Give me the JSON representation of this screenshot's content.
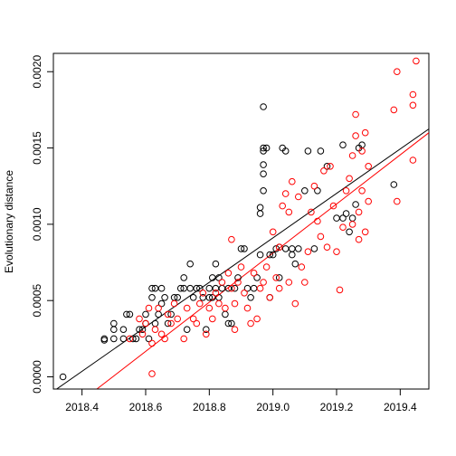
{
  "chart_data": {
    "type": "scatter",
    "title": "",
    "xlabel": "",
    "ylabel": "Evolutionary distance",
    "xlim": [
      2018.31,
      2019.49
    ],
    "ylim": [
      -8e-05,
      0.00212
    ],
    "xticks": [
      2018.4,
      2018.6,
      2018.8,
      2019.0,
      2019.2,
      2019.4
    ],
    "xtick_labels": [
      "2018.4",
      "2018.6",
      "2018.8",
      "2019.0",
      "2019.2",
      "2019.4"
    ],
    "yticks": [
      0.0,
      0.0005,
      0.001,
      0.0015,
      0.002
    ],
    "ytick_labels": [
      "0.0000",
      "0.0005",
      "0.0010",
      "0.0015",
      "0.0020"
    ],
    "grid": false,
    "legend": "none",
    "series": [
      {
        "color": "#000000",
        "marker": "open-circle",
        "points": [
          [
            2018.34,
            0.0
          ],
          [
            2018.47,
            0.00025
          ],
          [
            2018.47,
            0.00024
          ],
          [
            2018.5,
            0.00025
          ],
          [
            2018.5,
            0.00031
          ],
          [
            2018.5,
            0.00035
          ],
          [
            2018.53,
            0.00025
          ],
          [
            2018.53,
            0.00031
          ],
          [
            2018.54,
            0.00041
          ],
          [
            2018.55,
            0.00041
          ],
          [
            2018.56,
            0.00025
          ],
          [
            2018.57,
            0.00025
          ],
          [
            2018.58,
            0.00031
          ],
          [
            2018.59,
            0.00031
          ],
          [
            2018.6,
            0.00035
          ],
          [
            2018.6,
            0.00041
          ],
          [
            2018.61,
            0.00025
          ],
          [
            2018.62,
            0.00052
          ],
          [
            2018.62,
            0.00058
          ],
          [
            2018.63,
            0.00058
          ],
          [
            2018.63,
            0.00035
          ],
          [
            2018.64,
            0.00041
          ],
          [
            2018.65,
            0.00048
          ],
          [
            2018.65,
            0.00058
          ],
          [
            2018.66,
            0.00052
          ],
          [
            2018.67,
            0.00035
          ],
          [
            2018.68,
            0.00041
          ],
          [
            2018.69,
            0.00052
          ],
          [
            2018.7,
            0.00052
          ],
          [
            2018.71,
            0.00058
          ],
          [
            2018.72,
            0.00065
          ],
          [
            2018.72,
            0.00058
          ],
          [
            2018.73,
            0.00031
          ],
          [
            2018.74,
            0.00058
          ],
          [
            2018.74,
            0.00074
          ],
          [
            2018.75,
            0.00052
          ],
          [
            2018.76,
            0.00058
          ],
          [
            2018.77,
            0.00058
          ],
          [
            2018.78,
            0.00052
          ],
          [
            2018.79,
            0.00031
          ],
          [
            2018.8,
            0.00052
          ],
          [
            2018.8,
            0.00058
          ],
          [
            2018.81,
            0.00052
          ],
          [
            2018.81,
            0.00065
          ],
          [
            2018.82,
            0.00058
          ],
          [
            2018.82,
            0.00074
          ],
          [
            2018.83,
            0.00052
          ],
          [
            2018.83,
            0.00065
          ],
          [
            2018.84,
            0.00058
          ],
          [
            2018.85,
            0.00041
          ],
          [
            2018.86,
            0.00058
          ],
          [
            2018.86,
            0.00035
          ],
          [
            2018.87,
            0.00035
          ],
          [
            2018.88,
            0.00058
          ],
          [
            2018.89,
            0.00065
          ],
          [
            2018.9,
            0.00084
          ],
          [
            2018.91,
            0.00084
          ],
          [
            2018.92,
            0.00058
          ],
          [
            2018.93,
            0.00052
          ],
          [
            2018.94,
            0.00058
          ],
          [
            2018.95,
            0.00065
          ],
          [
            2018.96,
            0.0008
          ],
          [
            2018.96,
            0.00107
          ],
          [
            2018.96,
            0.00111
          ],
          [
            2018.97,
            0.00122
          ],
          [
            2018.97,
            0.00133
          ],
          [
            2018.97,
            0.00139
          ],
          [
            2018.97,
            0.00148
          ],
          [
            2018.97,
            0.0015
          ],
          [
            2018.97,
            0.00177
          ],
          [
            2018.98,
            0.0015
          ],
          [
            2018.99,
            0.00052
          ],
          [
            2018.99,
            0.0008
          ],
          [
            2019.0,
            0.0008
          ],
          [
            2019.01,
            0.00084
          ],
          [
            2019.02,
            0.00065
          ],
          [
            2019.02,
            0.00085
          ],
          [
            2019.03,
            0.0015
          ],
          [
            2019.04,
            0.00148
          ],
          [
            2019.04,
            0.00084
          ],
          [
            2019.06,
            0.00084
          ],
          [
            2019.06,
            0.0008
          ],
          [
            2019.07,
            0.00074
          ],
          [
            2019.08,
            0.00084
          ],
          [
            2019.1,
            0.00122
          ],
          [
            2019.11,
            0.00148
          ],
          [
            2019.13,
            0.00084
          ],
          [
            2019.14,
            0.00122
          ],
          [
            2019.15,
            0.00148
          ],
          [
            2019.17,
            0.00138
          ],
          [
            2019.2,
            0.00104
          ],
          [
            2019.22,
            0.00152
          ],
          [
            2019.22,
            0.00104
          ],
          [
            2019.23,
            0.00107
          ],
          [
            2019.24,
            0.00095
          ],
          [
            2019.25,
            0.00104
          ],
          [
            2019.26,
            0.00113
          ],
          [
            2019.27,
            0.0015
          ],
          [
            2019.28,
            0.00152
          ],
          [
            2019.38,
            0.00126
          ]
        ]
      },
      {
        "color": "#ff0000",
        "marker": "open-circle",
        "points": [
          [
            2018.55,
            0.00025
          ],
          [
            2018.58,
            0.00038
          ],
          [
            2018.59,
            0.00028
          ],
          [
            2018.6,
            0.00035
          ],
          [
            2018.61,
            0.00045
          ],
          [
            2018.62,
            0.00022
          ],
          [
            2018.62,
            2e-05
          ],
          [
            2018.63,
            0.00031
          ],
          [
            2018.64,
            0.00045
          ],
          [
            2018.65,
            0.00028
          ],
          [
            2018.66,
            0.00025
          ],
          [
            2018.67,
            0.00041
          ],
          [
            2018.68,
            0.00035
          ],
          [
            2018.69,
            0.00048
          ],
          [
            2018.7,
            0.00038
          ],
          [
            2018.72,
            0.00025
          ],
          [
            2018.73,
            0.00045
          ],
          [
            2018.75,
            0.00038
          ],
          [
            2018.76,
            0.00035
          ],
          [
            2018.77,
            0.00048
          ],
          [
            2018.78,
            0.00055
          ],
          [
            2018.79,
            0.00028
          ],
          [
            2018.8,
            0.00045
          ],
          [
            2018.81,
            0.00038
          ],
          [
            2018.82,
            0.00055
          ],
          [
            2018.83,
            0.00048
          ],
          [
            2018.84,
            0.00062
          ],
          [
            2018.85,
            0.00045
          ],
          [
            2018.86,
            0.00068
          ],
          [
            2018.87,
            0.00058
          ],
          [
            2018.87,
            0.0009
          ],
          [
            2018.88,
            0.00031
          ],
          [
            2018.88,
            0.00048
          ],
          [
            2018.89,
            0.00062
          ],
          [
            2018.9,
            0.00072
          ],
          [
            2018.91,
            0.00055
          ],
          [
            2018.92,
            0.00045
          ],
          [
            2018.93,
            0.00035
          ],
          [
            2018.94,
            0.00068
          ],
          [
            2018.95,
            0.00038
          ],
          [
            2018.96,
            0.00058
          ],
          [
            2018.97,
            0.00062
          ],
          [
            2018.98,
            0.00072
          ],
          [
            2018.99,
            0.00052
          ],
          [
            2019.0,
            0.00095
          ],
          [
            2019.01,
            0.00065
          ],
          [
            2019.02,
            0.00058
          ],
          [
            2019.02,
            0.00085
          ],
          [
            2019.03,
            0.00112
          ],
          [
            2019.04,
            0.0012
          ],
          [
            2019.05,
            0.00108
          ],
          [
            2019.05,
            0.00062
          ],
          [
            2019.06,
            0.00128
          ],
          [
            2019.07,
            0.00048
          ],
          [
            2019.08,
            0.00118
          ],
          [
            2019.09,
            0.00072
          ],
          [
            2019.1,
            0.00062
          ],
          [
            2019.11,
            0.00082
          ],
          [
            2019.12,
            0.00108
          ],
          [
            2019.13,
            0.00125
          ],
          [
            2019.14,
            0.00102
          ],
          [
            2019.15,
            0.00092
          ],
          [
            2019.16,
            0.00135
          ],
          [
            2019.17,
            0.00085
          ],
          [
            2019.18,
            0.00138
          ],
          [
            2019.19,
            0.00112
          ],
          [
            2019.2,
            0.00082
          ],
          [
            2019.21,
            0.00057
          ],
          [
            2019.22,
            0.00098
          ],
          [
            2019.23,
            0.00122
          ],
          [
            2019.24,
            0.0013
          ],
          [
            2019.25,
            0.00145
          ],
          [
            2019.25,
            0.001
          ],
          [
            2019.26,
            0.00172
          ],
          [
            2019.26,
            0.00158
          ],
          [
            2019.27,
            0.00108
          ],
          [
            2019.27,
            0.0009
          ],
          [
            2019.28,
            0.00148
          ],
          [
            2019.28,
            0.00122
          ],
          [
            2019.29,
            0.00095
          ],
          [
            2019.29,
            0.0016
          ],
          [
            2019.3,
            0.00138
          ],
          [
            2019.3,
            0.00115
          ],
          [
            2019.38,
            0.00175
          ],
          [
            2019.39,
            0.00115
          ],
          [
            2019.39,
            0.002
          ],
          [
            2019.44,
            0.00185
          ],
          [
            2019.44,
            0.00178
          ],
          [
            2019.44,
            0.00142
          ],
          [
            2019.45,
            0.00207
          ]
        ]
      }
    ],
    "fit_lines": [
      {
        "color": "#000000",
        "x": [
          2018.31,
          2019.49
        ],
        "y": [
          -9.5e-05,
          0.001625
        ]
      },
      {
        "color": "#ff0000",
        "x": [
          2018.31,
          2019.49
        ],
        "y": [
          -0.0003,
          0.0016
        ]
      }
    ]
  }
}
